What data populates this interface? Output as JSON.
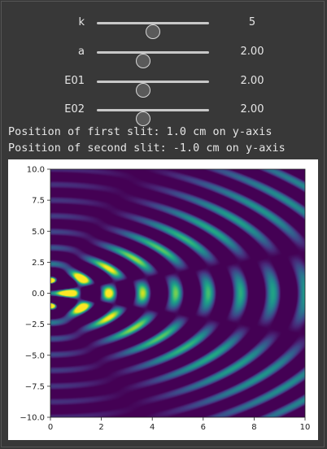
{
  "sliders": [
    {
      "label": "k",
      "value": "5",
      "position": 0.5
    },
    {
      "label": "a",
      "value": "2.00",
      "position": 0.41
    },
    {
      "label": "E01",
      "value": "2.00",
      "position": 0.41
    },
    {
      "label": "E02",
      "value": "2.00",
      "position": 0.41
    }
  ],
  "output": {
    "line1": "Position of first slit: 1.0 cm on y-axis",
    "line2": "Position of second slit: -1.0 cm on y-axis"
  },
  "colors": {
    "background": "#383838",
    "colormap": "viridis",
    "low": "#440154",
    "high": "#fde725"
  },
  "chart_data": {
    "type": "heatmap",
    "title": "",
    "xlabel": "",
    "ylabel": "",
    "xlim": [
      0,
      10
    ],
    "ylim": [
      -10,
      10
    ],
    "xticks": [
      "0",
      "2",
      "4",
      "6",
      "8",
      "10"
    ],
    "yticks": [
      "10.0",
      "7.5",
      "5.0",
      "2.5",
      "0.0",
      "−2.5",
      "−5.0",
      "−7.5",
      "−10.0"
    ],
    "source_positions_y": [
      1.0,
      -1.0
    ],
    "k": 5,
    "a": 2.0,
    "E01": 2.0,
    "E02": 2.0,
    "colormap": "viridis"
  }
}
